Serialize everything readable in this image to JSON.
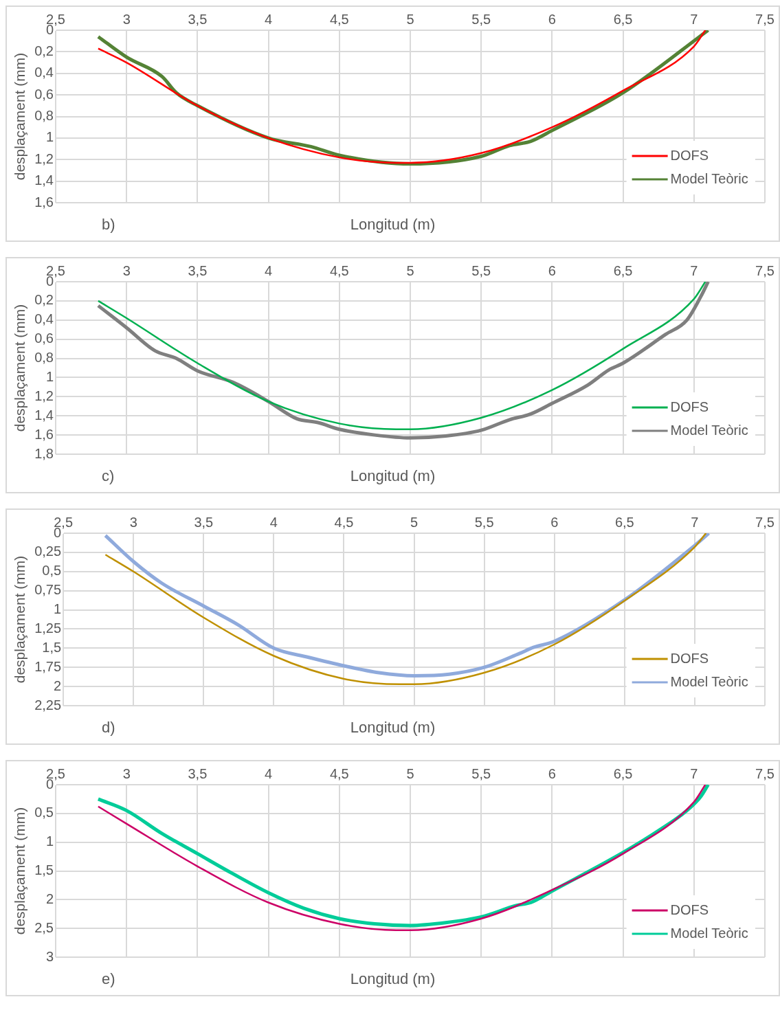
{
  "chart_data": [
    {
      "type": "line",
      "xlabel": "Longitud (m)",
      "ylabel": "desplaçament (mm)",
      "annotations": [
        "b)"
      ],
      "grid": true,
      "legend": "bottom right",
      "marker": "none",
      "xlim": [
        2.5,
        7.5
      ],
      "xticks": [
        {
          "value": 2.5,
          "label": "2,5"
        },
        3,
        {
          "value": 3.5,
          "label": "3,5"
        },
        4,
        {
          "value": 4.5,
          "label": "4,5"
        },
        5,
        {
          "value": 5.5,
          "label": "5,5"
        },
        6,
        {
          "value": 6.5,
          "label": "6,5"
        },
        7,
        {
          "value": 7.5,
          "label": "7,5"
        }
      ],
      "ylim": [
        1.6,
        0
      ],
      "yticks": [
        0,
        {
          "value": 0.2,
          "label": "0,2"
        },
        {
          "value": 0.4,
          "label": "0,4"
        },
        {
          "value": 0.6,
          "label": "0,6"
        },
        {
          "value": 0.8,
          "label": "0,8"
        },
        1,
        {
          "value": 1.2,
          "label": "1,2"
        },
        {
          "value": 1.4,
          "label": "1,4"
        },
        {
          "value": 1.6,
          "label": "1,6"
        }
      ],
      "series": [
        {
          "name": "DOFS",
          "color": "#ff0000",
          "x": [
            2.8,
            3,
            3.5,
            4,
            4.5,
            4.9,
            5,
            5.5,
            6,
            6.5,
            7,
            7.08
          ],
          "values": [
            0.17,
            0.3,
            0.7,
            1.0,
            1.18,
            1.23,
            1.23,
            1.14,
            0.9,
            0.56,
            0.15,
            0
          ]
        },
        {
          "name": "Model Teòric",
          "color": "#548235",
          "x": [
            2.8,
            3,
            3.25,
            3.35,
            3.5,
            4,
            4.3,
            4.5,
            5,
            5.5,
            5.7,
            5.85,
            6,
            6.5,
            7.1
          ],
          "values": [
            0.06,
            0.25,
            0.43,
            0.58,
            0.7,
            1.0,
            1.08,
            1.16,
            1.24,
            1.17,
            1.07,
            1.03,
            0.93,
            0.58,
            0
          ]
        }
      ]
    },
    {
      "type": "line",
      "xlabel": "Longitud (m)",
      "ylabel": "desplaçament (mm)",
      "annotations": [
        "c)"
      ],
      "grid": true,
      "legend": "bottom right",
      "marker": "none",
      "xlim": [
        2.5,
        7.5
      ],
      "xticks": [
        {
          "value": 2.5,
          "label": "2,5"
        },
        3,
        {
          "value": 3.5,
          "label": "3,5"
        },
        4,
        {
          "value": 4.5,
          "label": "4,5"
        },
        5,
        {
          "value": 5.5,
          "label": "5,5"
        },
        6,
        {
          "value": 6.5,
          "label": "6,5"
        },
        7,
        {
          "value": 7.5,
          "label": "7,5"
        }
      ],
      "ylim": [
        1.8,
        0
      ],
      "yticks": [
        0,
        {
          "value": 0.2,
          "label": "0,2"
        },
        {
          "value": 0.4,
          "label": "0,4"
        },
        {
          "value": 0.6,
          "label": "0,6"
        },
        {
          "value": 0.8,
          "label": "0,8"
        },
        1,
        {
          "value": 1.2,
          "label": "1,2"
        },
        {
          "value": 1.4,
          "label": "1,4"
        },
        {
          "value": 1.6,
          "label": "1,6"
        },
        {
          "value": 1.8,
          "label": "1,8"
        }
      ],
      "series": [
        {
          "name": "DOFS",
          "color": "#00b050",
          "x": [
            2.8,
            3,
            3.5,
            4,
            4.5,
            4.9,
            5,
            5.5,
            6,
            6.5,
            7,
            7.08
          ],
          "values": [
            0.2,
            0.38,
            0.85,
            1.25,
            1.48,
            1.54,
            1.54,
            1.42,
            1.13,
            0.7,
            0.18,
            0
          ]
        },
        {
          "name": "Model Teòric",
          "color": "#7f7f7f",
          "x": [
            2.8,
            3,
            3.2,
            3.35,
            3.5,
            3.75,
            4,
            4.2,
            4.35,
            4.5,
            4.75,
            5,
            5.25,
            5.5,
            5.7,
            5.85,
            6,
            6.25,
            6.4,
            6.5,
            6.8,
            6.95,
            7.05,
            7.1
          ],
          "values": [
            0.25,
            0.48,
            0.72,
            0.8,
            0.93,
            1.05,
            1.25,
            1.43,
            1.47,
            1.54,
            1.6,
            1.63,
            1.61,
            1.55,
            1.44,
            1.38,
            1.27,
            1.08,
            0.92,
            0.85,
            0.55,
            0.4,
            0.15,
            0
          ]
        }
      ]
    },
    {
      "type": "line",
      "xlabel": "Longitud (m)",
      "ylabel": "desplaçament (mm)",
      "annotations": [
        "d)"
      ],
      "grid": true,
      "legend": "bottom right",
      "marker": "none",
      "xlim": [
        2.5,
        7.5
      ],
      "xticks": [
        {
          "value": 2.5,
          "label": "2,5"
        },
        3,
        {
          "value": 3.5,
          "label": "3,5"
        },
        4,
        {
          "value": 4.5,
          "label": "4,5"
        },
        5,
        {
          "value": 5.5,
          "label": "5,5"
        },
        6,
        {
          "value": 6.5,
          "label": "6,5"
        },
        7,
        {
          "value": 7.5,
          "label": "7,5"
        }
      ],
      "ylim": [
        2.25,
        0
      ],
      "yticks": [
        0,
        {
          "value": 0.25,
          "label": "0,25"
        },
        {
          "value": 0.5,
          "label": "0,5"
        },
        {
          "value": 0.75,
          "label": "0,75"
        },
        1,
        {
          "value": 1.25,
          "label": "1,25"
        },
        {
          "value": 1.5,
          "label": "1,5"
        },
        {
          "value": 1.75,
          "label": "1,75"
        },
        2,
        {
          "value": 2.25,
          "label": "2,25"
        }
      ],
      "series": [
        {
          "name": "DOFS",
          "color": "#bf9000",
          "x": [
            2.8,
            3,
            3.5,
            4,
            4.5,
            4.9,
            5,
            5.5,
            6,
            6.5,
            7,
            7.08
          ],
          "values": [
            0.28,
            0.5,
            1.1,
            1.6,
            1.9,
            1.97,
            1.97,
            1.82,
            1.45,
            0.88,
            0.18,
            0
          ]
        },
        {
          "name": "Model Teòric",
          "color": "#8faadc",
          "x": [
            2.8,
            3,
            3.2,
            3.5,
            3.75,
            4,
            4.25,
            4.5,
            4.75,
            5,
            5.25,
            5.5,
            5.75,
            5.85,
            6,
            6.5,
            7,
            7.1
          ],
          "values": [
            0.03,
            0.37,
            0.65,
            0.95,
            1.2,
            1.5,
            1.62,
            1.73,
            1.82,
            1.86,
            1.84,
            1.75,
            1.57,
            1.49,
            1.41,
            0.87,
            0.16,
            0
          ]
        }
      ]
    },
    {
      "type": "line",
      "xlabel": "Longitud (m)",
      "ylabel": "desplaçament (mm)",
      "annotations": [
        "e)"
      ],
      "grid": true,
      "legend": "bottom right",
      "marker": "none",
      "xlim": [
        2.5,
        7.5
      ],
      "xticks": [
        {
          "value": 2.5,
          "label": "2,5"
        },
        3,
        {
          "value": 3.5,
          "label": "3,5"
        },
        4,
        {
          "value": 4.5,
          "label": "4,5"
        },
        5,
        {
          "value": 5.5,
          "label": "5,5"
        },
        6,
        {
          "value": 6.5,
          "label": "6,5"
        },
        7,
        {
          "value": 7.5,
          "label": "7,5"
        }
      ],
      "ylim": [
        3,
        0
      ],
      "yticks": [
        0,
        {
          "value": 0.5,
          "label": "0,5"
        },
        1,
        {
          "value": 1.5,
          "label": "1,5"
        },
        2,
        {
          "value": 2.5,
          "label": "2,5"
        },
        3
      ],
      "series": [
        {
          "name": "DOFS",
          "color": "#cc0066",
          "x": [
            2.8,
            3,
            3.5,
            4,
            4.5,
            4.9,
            5,
            5.5,
            6,
            6.5,
            7,
            7.08
          ],
          "values": [
            0.38,
            0.68,
            1.42,
            2.05,
            2.42,
            2.53,
            2.53,
            2.33,
            1.83,
            1.2,
            0.3,
            0
          ]
        },
        {
          "name": "Model Teòric",
          "color": "#00cc99",
          "x": [
            2.8,
            3,
            3.25,
            3.5,
            3.75,
            4,
            4.25,
            4.5,
            4.75,
            5,
            5.25,
            5.5,
            5.75,
            5.85,
            6,
            6.5,
            6.75,
            6.95,
            7.05,
            7.1
          ],
          "values": [
            0.25,
            0.45,
            0.85,
            1.2,
            1.55,
            1.88,
            2.15,
            2.33,
            2.42,
            2.45,
            2.4,
            2.3,
            2.1,
            2.05,
            1.85,
            1.18,
            0.8,
            0.45,
            0.2,
            0
          ]
        }
      ]
    }
  ]
}
